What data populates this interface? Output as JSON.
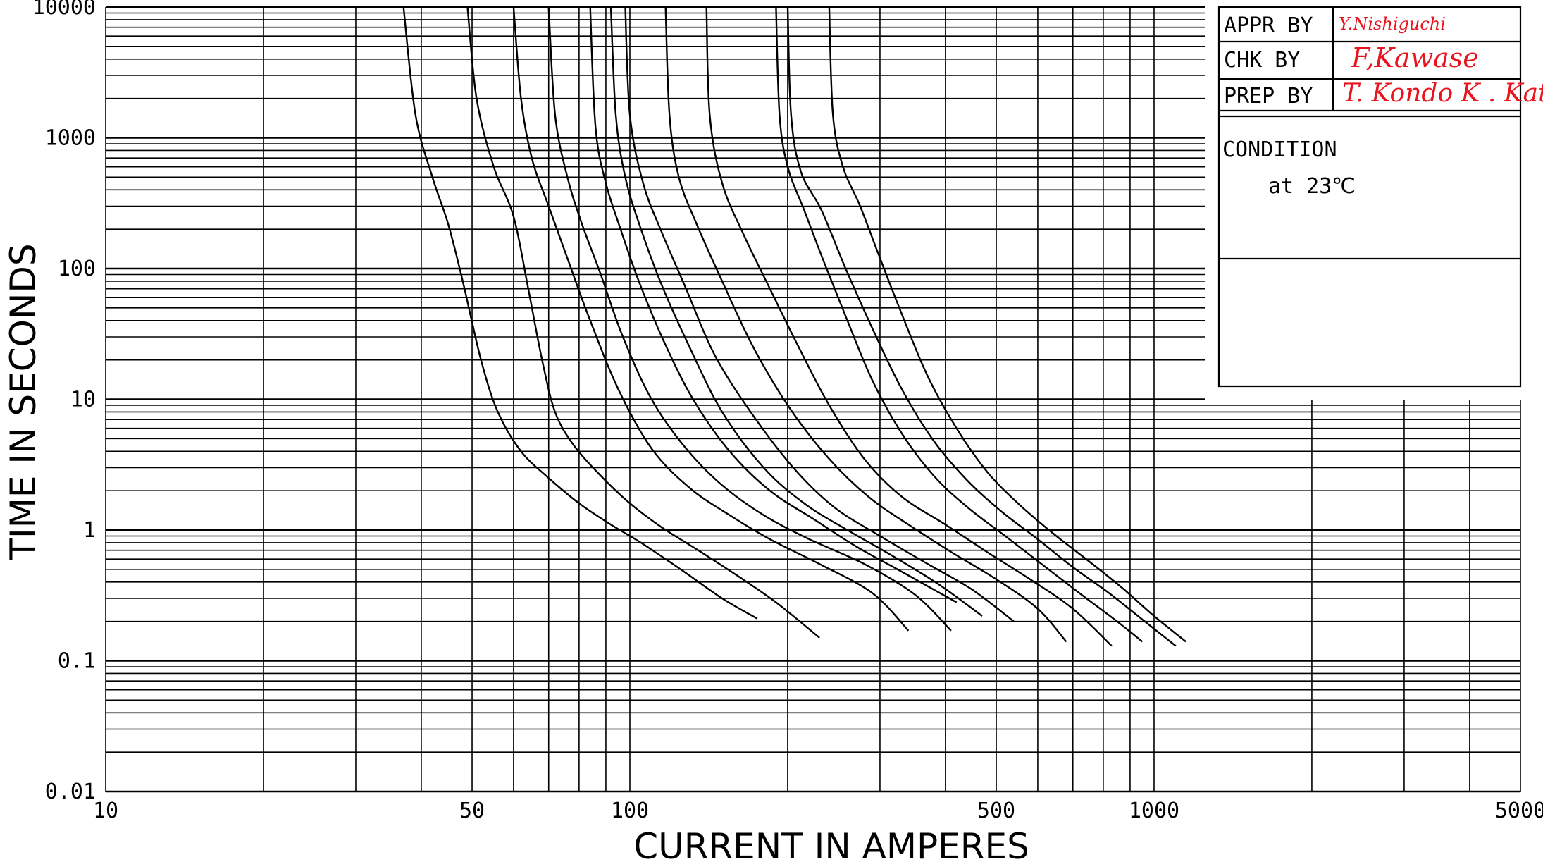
{
  "chart_data": {
    "type": "line",
    "xlabel": "CURRENT IN AMPERES",
    "ylabel": "TIME IN SECONDS",
    "x_scale": "log",
    "y_scale": "log",
    "xlim": [
      10,
      5000
    ],
    "ylim": [
      0.01,
      10000
    ],
    "x_tick_labels": [
      "10",
      "50",
      "100",
      "500",
      "1000",
      "5000"
    ],
    "y_tick_labels": [
      "0.01",
      "0.1",
      "1",
      "10",
      "100",
      "1000",
      "10000"
    ],
    "x_gridlines": [
      10,
      20,
      30,
      40,
      50,
      60,
      70,
      80,
      90,
      100,
      200,
      300,
      400,
      500,
      600,
      700,
      800,
      900,
      1000,
      2000,
      3000,
      4000,
      5000
    ],
    "series": [
      {
        "x": [
          37,
          39,
          42,
          45,
          48,
          52,
          56,
          62,
          70,
          80,
          92,
          105,
          125,
          150,
          175
        ],
        "y": [
          10000,
          1500,
          500,
          220,
          80,
          20,
          8,
          4,
          2.5,
          1.6,
          1.1,
          0.8,
          0.5,
          0.3,
          0.21
        ]
      },
      {
        "x": [
          49,
          51,
          55,
          60,
          64,
          68,
          72,
          78,
          88,
          100,
          115,
          135,
          160,
          190,
          230
        ],
        "y": [
          10000,
          2000,
          600,
          250,
          70,
          20,
          8,
          4.5,
          2.6,
          1.6,
          1.05,
          0.7,
          0.45,
          0.28,
          0.15
        ]
      },
      {
        "x": [
          60,
          62,
          65,
          70,
          76,
          84,
          95,
          110,
          130,
          155,
          185,
          230,
          290,
          340
        ],
        "y": [
          10000,
          2000,
          700,
          300,
          120,
          40,
          12,
          4.2,
          2.1,
          1.3,
          0.85,
          0.55,
          0.33,
          0.17
        ]
      },
      {
        "x": [
          70,
          72,
          76,
          81,
          88,
          97,
          110,
          128,
          150,
          180,
          220,
          280,
          350,
          410
        ],
        "y": [
          10000,
          1500,
          500,
          220,
          90,
          30,
          10,
          4.2,
          2.2,
          1.3,
          0.85,
          0.55,
          0.32,
          0.17
        ]
      },
      {
        "x": [
          84,
          86,
          90,
          96,
          104,
          116,
          132,
          155,
          185,
          225,
          270,
          330,
          420
        ],
        "y": [
          10000,
          1200,
          450,
          200,
          80,
          28,
          10,
          4,
          2,
          1.2,
          0.75,
          0.48,
          0.28
        ]
      },
      {
        "x": [
          92,
          94,
          98,
          105,
          115,
          130,
          150,
          180,
          215,
          260,
          320,
          390,
          470
        ],
        "y": [
          10000,
          1500,
          500,
          200,
          75,
          25,
          8,
          3,
          1.6,
          1,
          0.62,
          0.38,
          0.22
        ]
      },
      {
        "x": [
          98,
          100,
          106,
          115,
          128,
          145,
          170,
          205,
          245,
          300,
          370,
          450,
          540
        ],
        "y": [
          10000,
          1500,
          450,
          190,
          70,
          22,
          8,
          3,
          1.5,
          0.9,
          0.55,
          0.35,
          0.2
        ]
      },
      {
        "x": [
          117,
          119,
          124,
          134,
          150,
          172,
          202,
          240,
          285,
          340,
          410,
          500,
          600,
          680
        ],
        "y": [
          10000,
          1500,
          500,
          220,
          80,
          25,
          8.5,
          3.5,
          1.8,
          1.1,
          0.68,
          0.42,
          0.25,
          0.14
        ]
      },
      {
        "x": [
          140,
          142,
          150,
          165,
          185,
          210,
          240,
          280,
          330,
          400,
          480,
          580,
          700,
          830
        ],
        "y": [
          10000,
          1500,
          450,
          180,
          70,
          25,
          9,
          3.5,
          1.8,
          1.1,
          0.68,
          0.42,
          0.25,
          0.13
        ]
      },
      {
        "x": [
          190,
          193,
          200,
          215,
          235,
          260,
          290,
          330,
          380,
          440,
          520,
          610,
          720,
          850,
          950
        ],
        "y": [
          10000,
          1500,
          600,
          280,
          110,
          40,
          14,
          5.5,
          2.6,
          1.5,
          0.9,
          0.55,
          0.33,
          0.2,
          0.14
        ]
      },
      {
        "x": [
          200,
          203,
          212,
          232,
          258,
          290,
          330,
          380,
          440,
          510,
          600,
          700,
          820,
          960,
          1100
        ],
        "y": [
          10000,
          1500,
          550,
          280,
          100,
          35,
          12,
          4.8,
          2.4,
          1.4,
          0.85,
          0.52,
          0.33,
          0.2,
          0.13
        ]
      },
      {
        "x": [
          240,
          244,
          255,
          275,
          300,
          330,
          370,
          420,
          480,
          550,
          640,
          750,
          870,
          1000,
          1150
        ],
        "y": [
          10000,
          1500,
          600,
          300,
          120,
          45,
          15,
          6,
          2.8,
          1.6,
          0.95,
          0.58,
          0.36,
          0.22,
          0.14
        ]
      }
    ]
  },
  "title_block": {
    "appr_label": "APPR BY",
    "appr_sig": "Y.Nishiguchi",
    "chk_label": "CHK BY",
    "chk_sig": "F,Kawase",
    "prep_label": "PREP BY",
    "prep_sig": "T. Kondo K . Kat",
    "condition_label": "CONDITION",
    "condition_value": "at 23℃"
  },
  "colors": {
    "signature": "#e8141e",
    "ink": "#000000"
  }
}
